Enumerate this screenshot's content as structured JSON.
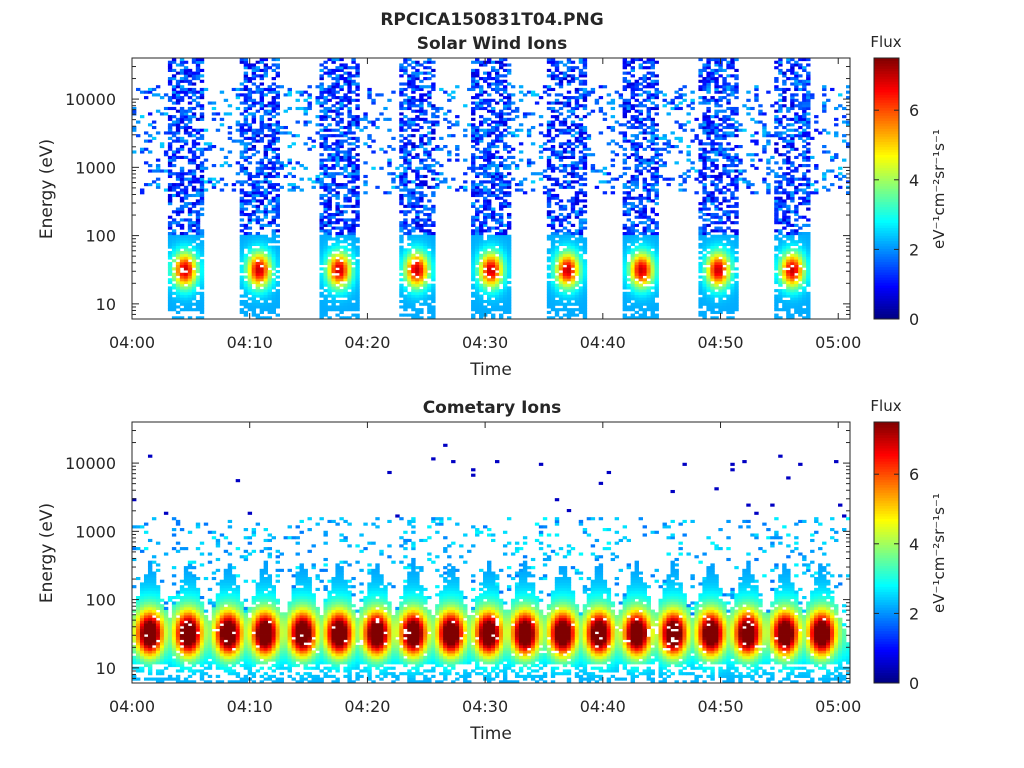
{
  "figure": {
    "title": "RPCICA150831T04.PNG"
  },
  "chart_data": [
    {
      "type": "heatmap",
      "title": "Solar Wind Ions",
      "xlabel": "Time",
      "ylabel": "Energy (eV)",
      "x_ticks": [
        "04:00",
        "04:10",
        "04:20",
        "04:30",
        "04:40",
        "04:50",
        "05:00"
      ],
      "x_range_minutes": [
        0,
        61
      ],
      "y_scale": "log",
      "y_ticks": [
        10,
        100,
        1000,
        10000
      ],
      "y_range": [
        6,
        40000
      ],
      "colorbar": {
        "label": "Flux",
        "unit_label": "eV⁻¹cm⁻²sr⁻¹s⁻¹",
        "ticks": [
          0,
          2,
          4,
          6
        ],
        "range": [
          0,
          7.5
        ]
      },
      "colormap": "jet",
      "bursts_center_minutes": [
        4.5,
        10.8,
        17.6,
        24.2,
        30.5,
        37.0,
        43.3,
        49.8,
        56.1
      ]
    },
    {
      "type": "heatmap",
      "title": "Cometary Ions",
      "xlabel": "Time",
      "ylabel": "Energy (eV)",
      "x_ticks": [
        "04:00",
        "04:10",
        "04:20",
        "04:30",
        "04:40",
        "04:50",
        "05:00"
      ],
      "x_range_minutes": [
        0,
        61
      ],
      "y_scale": "log",
      "y_ticks": [
        10,
        100,
        1000,
        10000
      ],
      "y_range": [
        6,
        40000
      ],
      "colorbar": {
        "label": "Flux",
        "unit_label": "eV⁻¹cm⁻²sr⁻¹s⁻¹",
        "ticks": [
          0,
          2,
          4,
          6
        ],
        "range": [
          0,
          7.5
        ]
      },
      "colormap": "jet",
      "bursts_center_minutes": [
        1.5,
        4.8,
        8.2,
        11.3,
        14.5,
        17.6,
        20.8,
        23.9,
        27.1,
        30.3,
        33.4,
        36.6,
        39.7,
        42.9,
        46.0,
        49.2,
        52.3,
        55.5,
        58.6
      ]
    }
  ]
}
